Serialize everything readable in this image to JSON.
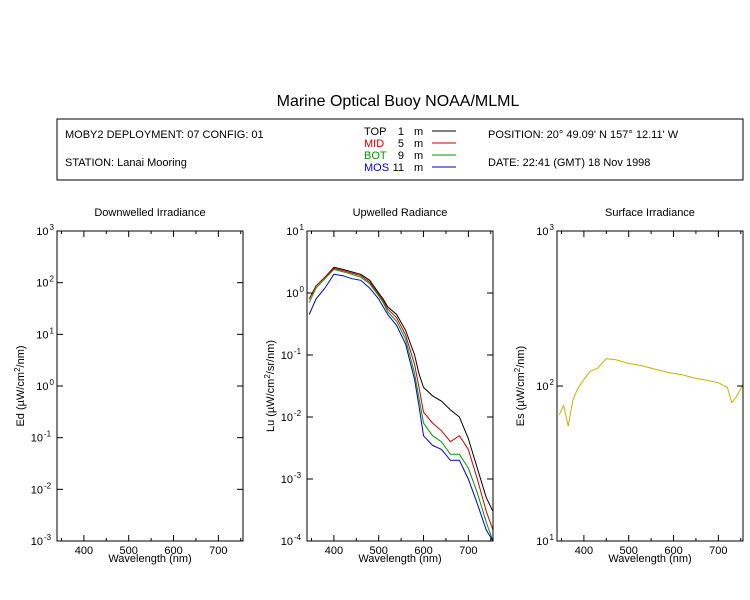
{
  "title": "Marine Optical Buoy NOAA/MLML",
  "info": {
    "deployment": "MOBY2 DEPLOYMENT: 07 CONFIG: 01",
    "station": "STATION: Lanai Mooring",
    "position": "POSITION: 20° 49.09' N   157° 12.11' W",
    "date": "DATE: 22:41 (GMT) 18 Nov 1998"
  },
  "legend": [
    {
      "name": "TOP",
      "depth": "1",
      "unit": "m",
      "color": "#000000"
    },
    {
      "name": "MID",
      "depth": "5",
      "unit": "m",
      "color": "#cc0000"
    },
    {
      "name": "BOT",
      "depth": "9",
      "unit": "m",
      "color": "#009900"
    },
    {
      "name": "MOS",
      "depth": "11",
      "unit": "m",
      "color": "#0000cc"
    }
  ],
  "chart_data": [
    {
      "type": "line",
      "title": "Downwelled Irradiance",
      "xlabel": "Wavelength (nm)",
      "ylabel_prefix": "Ed  (µW/cm",
      "ylabel_sup": "2",
      "ylabel_suffix": "/nm)",
      "xlim": [
        340,
        755
      ],
      "ylim": [
        0.001,
        1000
      ],
      "yscale": "log",
      "xticks": [
        "400",
        "500",
        "600",
        "700"
      ],
      "yticks": [
        {
          "base": "10",
          "exp": "3"
        },
        {
          "base": "10",
          "exp": "2"
        },
        {
          "base": "10",
          "exp": "1"
        },
        {
          "base": "10",
          "exp": "0"
        },
        {
          "base": "10",
          "exp": "-1"
        },
        {
          "base": "10",
          "exp": "-2"
        },
        {
          "base": "10",
          "exp": "-3"
        }
      ],
      "series": []
    },
    {
      "type": "line",
      "title": "Upwelled Radiance",
      "xlabel": "Wavelength (nm)",
      "ylabel_prefix": "Lu  (µW/cm",
      "ylabel_sup": "2",
      "ylabel_suffix": "/sr/nm)",
      "xlim": [
        340,
        755
      ],
      "ylim": [
        0.0001,
        10
      ],
      "yscale": "log",
      "xticks": [
        "400",
        "500",
        "600",
        "700"
      ],
      "yticks": [
        {
          "base": "10",
          "exp": "1"
        },
        {
          "base": "10",
          "exp": "0"
        },
        {
          "base": "10",
          "exp": "-1"
        },
        {
          "base": "10",
          "exp": "-2"
        },
        {
          "base": "10",
          "exp": "-3"
        },
        {
          "base": "10",
          "exp": "-4"
        }
      ],
      "series": [
        {
          "name": "TOP",
          "color": "#000000",
          "x": [
            345,
            360,
            380,
            400,
            420,
            440,
            460,
            480,
            500,
            510,
            520,
            540,
            560,
            580,
            590,
            600,
            620,
            640,
            660,
            680,
            700,
            720,
            740,
            755
          ],
          "y": [
            0.8,
            1.3,
            1.8,
            2.6,
            2.4,
            2.2,
            2.0,
            1.6,
            1.0,
            0.8,
            0.6,
            0.45,
            0.25,
            0.1,
            0.05,
            0.03,
            0.022,
            0.018,
            0.013,
            0.01,
            0.0045,
            0.0015,
            0.0005,
            0.0003
          ]
        },
        {
          "name": "MID",
          "color": "#cc0000",
          "x": [
            345,
            360,
            380,
            400,
            420,
            440,
            460,
            480,
            500,
            510,
            520,
            540,
            560,
            580,
            590,
            600,
            620,
            640,
            660,
            680,
            700,
            720,
            740,
            755
          ],
          "y": [
            0.8,
            1.3,
            1.8,
            2.5,
            2.3,
            2.1,
            1.9,
            1.5,
            0.95,
            0.75,
            0.55,
            0.4,
            0.21,
            0.07,
            0.03,
            0.012,
            0.008,
            0.006,
            0.004,
            0.005,
            0.003,
            0.001,
            0.0003,
            0.00015
          ]
        },
        {
          "name": "BOT",
          "color": "#009900",
          "x": [
            345,
            360,
            380,
            400,
            420,
            440,
            460,
            480,
            500,
            510,
            520,
            540,
            560,
            580,
            590,
            600,
            620,
            640,
            660,
            680,
            700,
            720,
            740,
            755
          ],
          "y": [
            0.7,
            1.2,
            1.7,
            2.4,
            2.2,
            2.0,
            1.8,
            1.4,
            0.9,
            0.7,
            0.5,
            0.35,
            0.18,
            0.05,
            0.02,
            0.008,
            0.005,
            0.004,
            0.0025,
            0.0025,
            0.0015,
            0.0006,
            0.0002,
            0.0001
          ]
        },
        {
          "name": "MOS",
          "color": "#0000cc",
          "x": [
            345,
            360,
            380,
            400,
            420,
            440,
            460,
            480,
            500,
            510,
            520,
            540,
            560,
            580,
            590,
            600,
            620,
            640,
            660,
            680,
            700,
            720,
            740,
            755
          ],
          "y": [
            0.45,
            0.8,
            1.2,
            2.0,
            1.9,
            1.7,
            1.6,
            1.2,
            0.8,
            0.6,
            0.45,
            0.3,
            0.15,
            0.04,
            0.015,
            0.005,
            0.0035,
            0.003,
            0.002,
            0.002,
            0.001,
            0.0004,
            0.00015,
            0.0001
          ]
        }
      ]
    },
    {
      "type": "line",
      "title": "Surface Irradiance",
      "xlabel": "Wavelength (nm)",
      "ylabel_prefix": "Es  (µW/cm",
      "ylabel_sup": "2",
      "ylabel_suffix": "/nm)",
      "xlim": [
        340,
        755
      ],
      "ylim": [
        10,
        1000
      ],
      "yscale": "log",
      "xticks": [
        "400",
        "500",
        "600",
        "700"
      ],
      "yticks": [
        {
          "base": "10",
          "exp": "3"
        },
        {
          "base": "10",
          "exp": "2"
        },
        {
          "base": "10",
          "exp": "1"
        }
      ],
      "series": [
        {
          "color": "#c8b400",
          "x": [
            345,
            355,
            365,
            375,
            385,
            395,
            405,
            415,
            430,
            450,
            470,
            500,
            530,
            560,
            590,
            620,
            650,
            680,
            700,
            720,
            730,
            740,
            755
          ],
          "y": [
            65,
            75,
            55,
            80,
            95,
            105,
            115,
            125,
            130,
            150,
            148,
            140,
            135,
            128,
            122,
            118,
            112,
            108,
            105,
            98,
            78,
            85,
            102
          ]
        }
      ]
    }
  ]
}
